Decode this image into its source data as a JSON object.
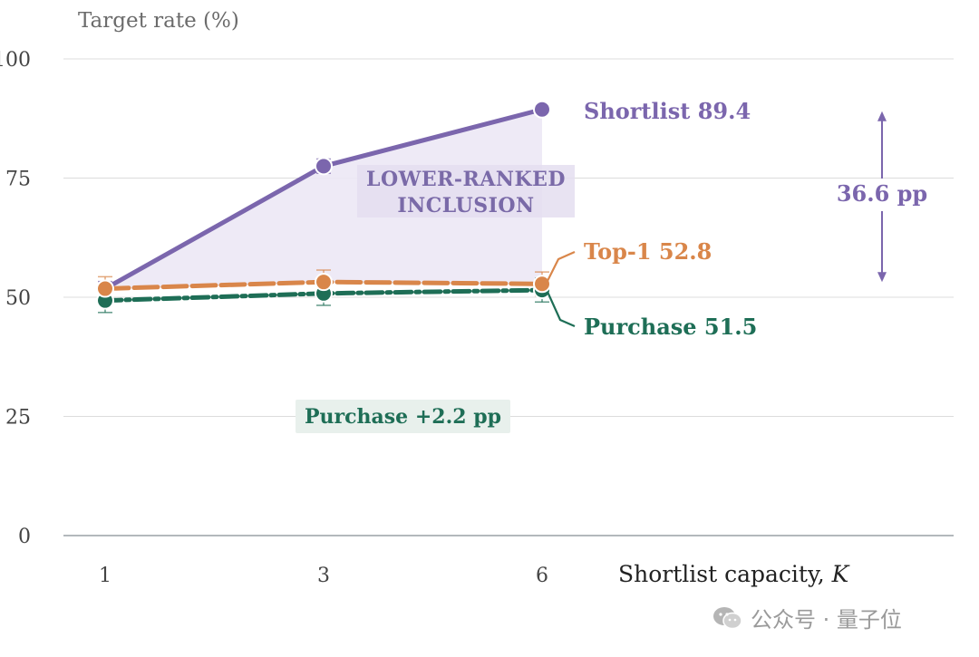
{
  "chart_data": {
    "type": "line",
    "ylabel": "Target rate (%)",
    "xlabel": "Shortlist capacity, K",
    "ylim": [
      0,
      100
    ],
    "yticks": [
      0,
      25,
      50,
      75,
      100
    ],
    "x": [
      1,
      3,
      6
    ],
    "grid": true,
    "series": [
      {
        "name": "Shortlist",
        "values": [
          51.8,
          77.5,
          89.4
        ],
        "errors": [
          1.5,
          1.5,
          0
        ],
        "color": "#7b66ad",
        "style": "solid",
        "end_label": "Shortlist 89.4"
      },
      {
        "name": "Top-1",
        "values": [
          51.8,
          53.2,
          52.8
        ],
        "errors": [
          2.5,
          2.5,
          2.5
        ],
        "color": "#d9864a",
        "style": "dashed",
        "end_label": "Top-1 52.8"
      },
      {
        "name": "Purchase",
        "values": [
          49.3,
          50.8,
          51.5
        ],
        "errors": [
          2.5,
          2.5,
          2.5
        ],
        "color": "#1e6e56",
        "style": "dashdot",
        "end_label": "Purchase 51.5"
      }
    ],
    "annotations": {
      "shaded_region": [
        "LOWER-RANKED",
        "INCLUSION"
      ],
      "gap": "36.6 pp",
      "gap_range": [
        52.8,
        89.4
      ],
      "purchase_note": "Purchase +2.2 pp"
    }
  },
  "watermark": {
    "text": "公众号 · 量子位"
  },
  "colors": {
    "shortlist": "#7b66ad",
    "top1": "#d9864a",
    "purchase": "#1e6e56",
    "grid": "#dcdcdc"
  }
}
